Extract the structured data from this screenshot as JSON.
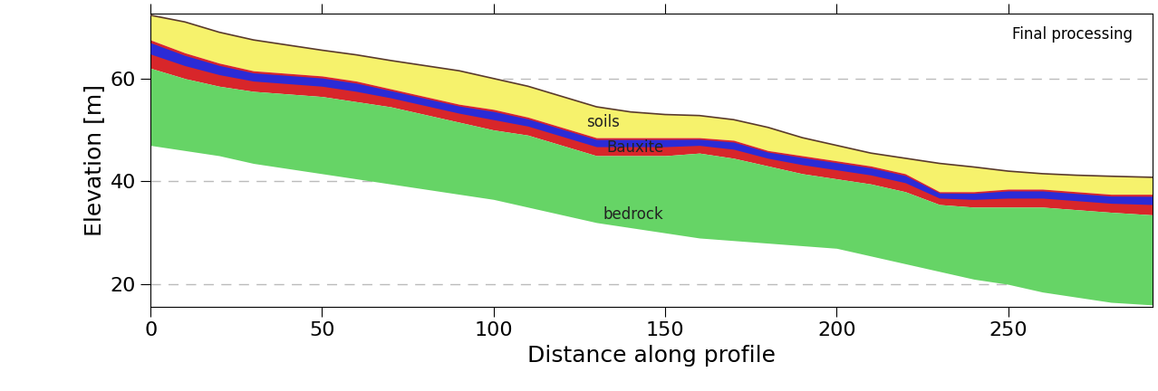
{
  "chart_data": {
    "type": "area",
    "title": "Final processing",
    "x_label": "Distance along profile",
    "y_label": "Elevation [m]",
    "x": [
      0,
      10,
      20,
      30,
      40,
      50,
      60,
      70,
      80,
      90,
      100,
      110,
      120,
      130,
      140,
      150,
      160,
      170,
      180,
      190,
      200,
      210,
      220,
      230,
      240,
      250,
      260,
      270,
      280,
      292
    ],
    "surface": [
      72.3,
      71.0,
      69.0,
      67.5,
      66.5,
      65.5,
      64.6,
      63.5,
      62.5,
      61.5,
      60.0,
      58.5,
      56.5,
      54.5,
      53.5,
      53.0,
      52.8,
      52.0,
      50.5,
      48.5,
      47.0,
      45.5,
      44.5,
      43.5,
      42.8,
      42.0,
      41.5,
      41.2,
      41.0,
      40.8
    ],
    "bauxite_top": [
      67.5,
      65.0,
      63.0,
      61.5,
      61.0,
      60.5,
      59.5,
      58.0,
      56.5,
      55.0,
      54.0,
      52.5,
      50.5,
      48.5,
      48.5,
      48.5,
      48.5,
      48.0,
      46.0,
      45.0,
      44.0,
      43.0,
      41.5,
      38.0,
      38.0,
      38.5,
      38.5,
      38.0,
      37.5,
      37.5
    ],
    "bauxite_base": [
      62.0,
      60.0,
      58.5,
      57.5,
      57.0,
      56.5,
      55.5,
      54.5,
      53.0,
      51.5,
      50.0,
      49.0,
      47.0,
      45.0,
      45.0,
      45.0,
      45.5,
      44.5,
      43.0,
      41.5,
      40.5,
      39.5,
      38.0,
      35.5,
      35.0,
      35.0,
      35.0,
      34.5,
      34.0,
      33.5
    ],
    "section_base": [
      47.0,
      46.0,
      45.0,
      43.5,
      42.5,
      41.5,
      40.5,
      39.5,
      38.5,
      37.5,
      36.5,
      35.0,
      33.5,
      32.0,
      31.0,
      30.0,
      29.0,
      28.5,
      28.0,
      27.5,
      27.0,
      25.5,
      24.0,
      22.5,
      21.0,
      20.0,
      18.5,
      17.5,
      16.5,
      16.0
    ],
    "surface_color": "#5a3a2a",
    "layers": [
      {
        "name": "soils",
        "colors": [
          "#f6f26c"
        ],
        "label_x": 127,
        "label_y": 51.5
      },
      {
        "name": "Bauxite",
        "colors": [
          "#d8262a",
          "#2b2bd6"
        ],
        "label_x": 133,
        "label_y": 46.5
      },
      {
        "name": "bedrock",
        "colors": [
          "#66d466"
        ],
        "label_x": 132,
        "label_y": 33.5
      }
    ],
    "xlim": [
      0,
      292
    ],
    "ylim": [
      15.6,
      72.6
    ],
    "xticks": [
      0,
      50,
      100,
      150,
      200,
      250
    ],
    "yticks": [
      20,
      40,
      60
    ],
    "grid": "y"
  }
}
